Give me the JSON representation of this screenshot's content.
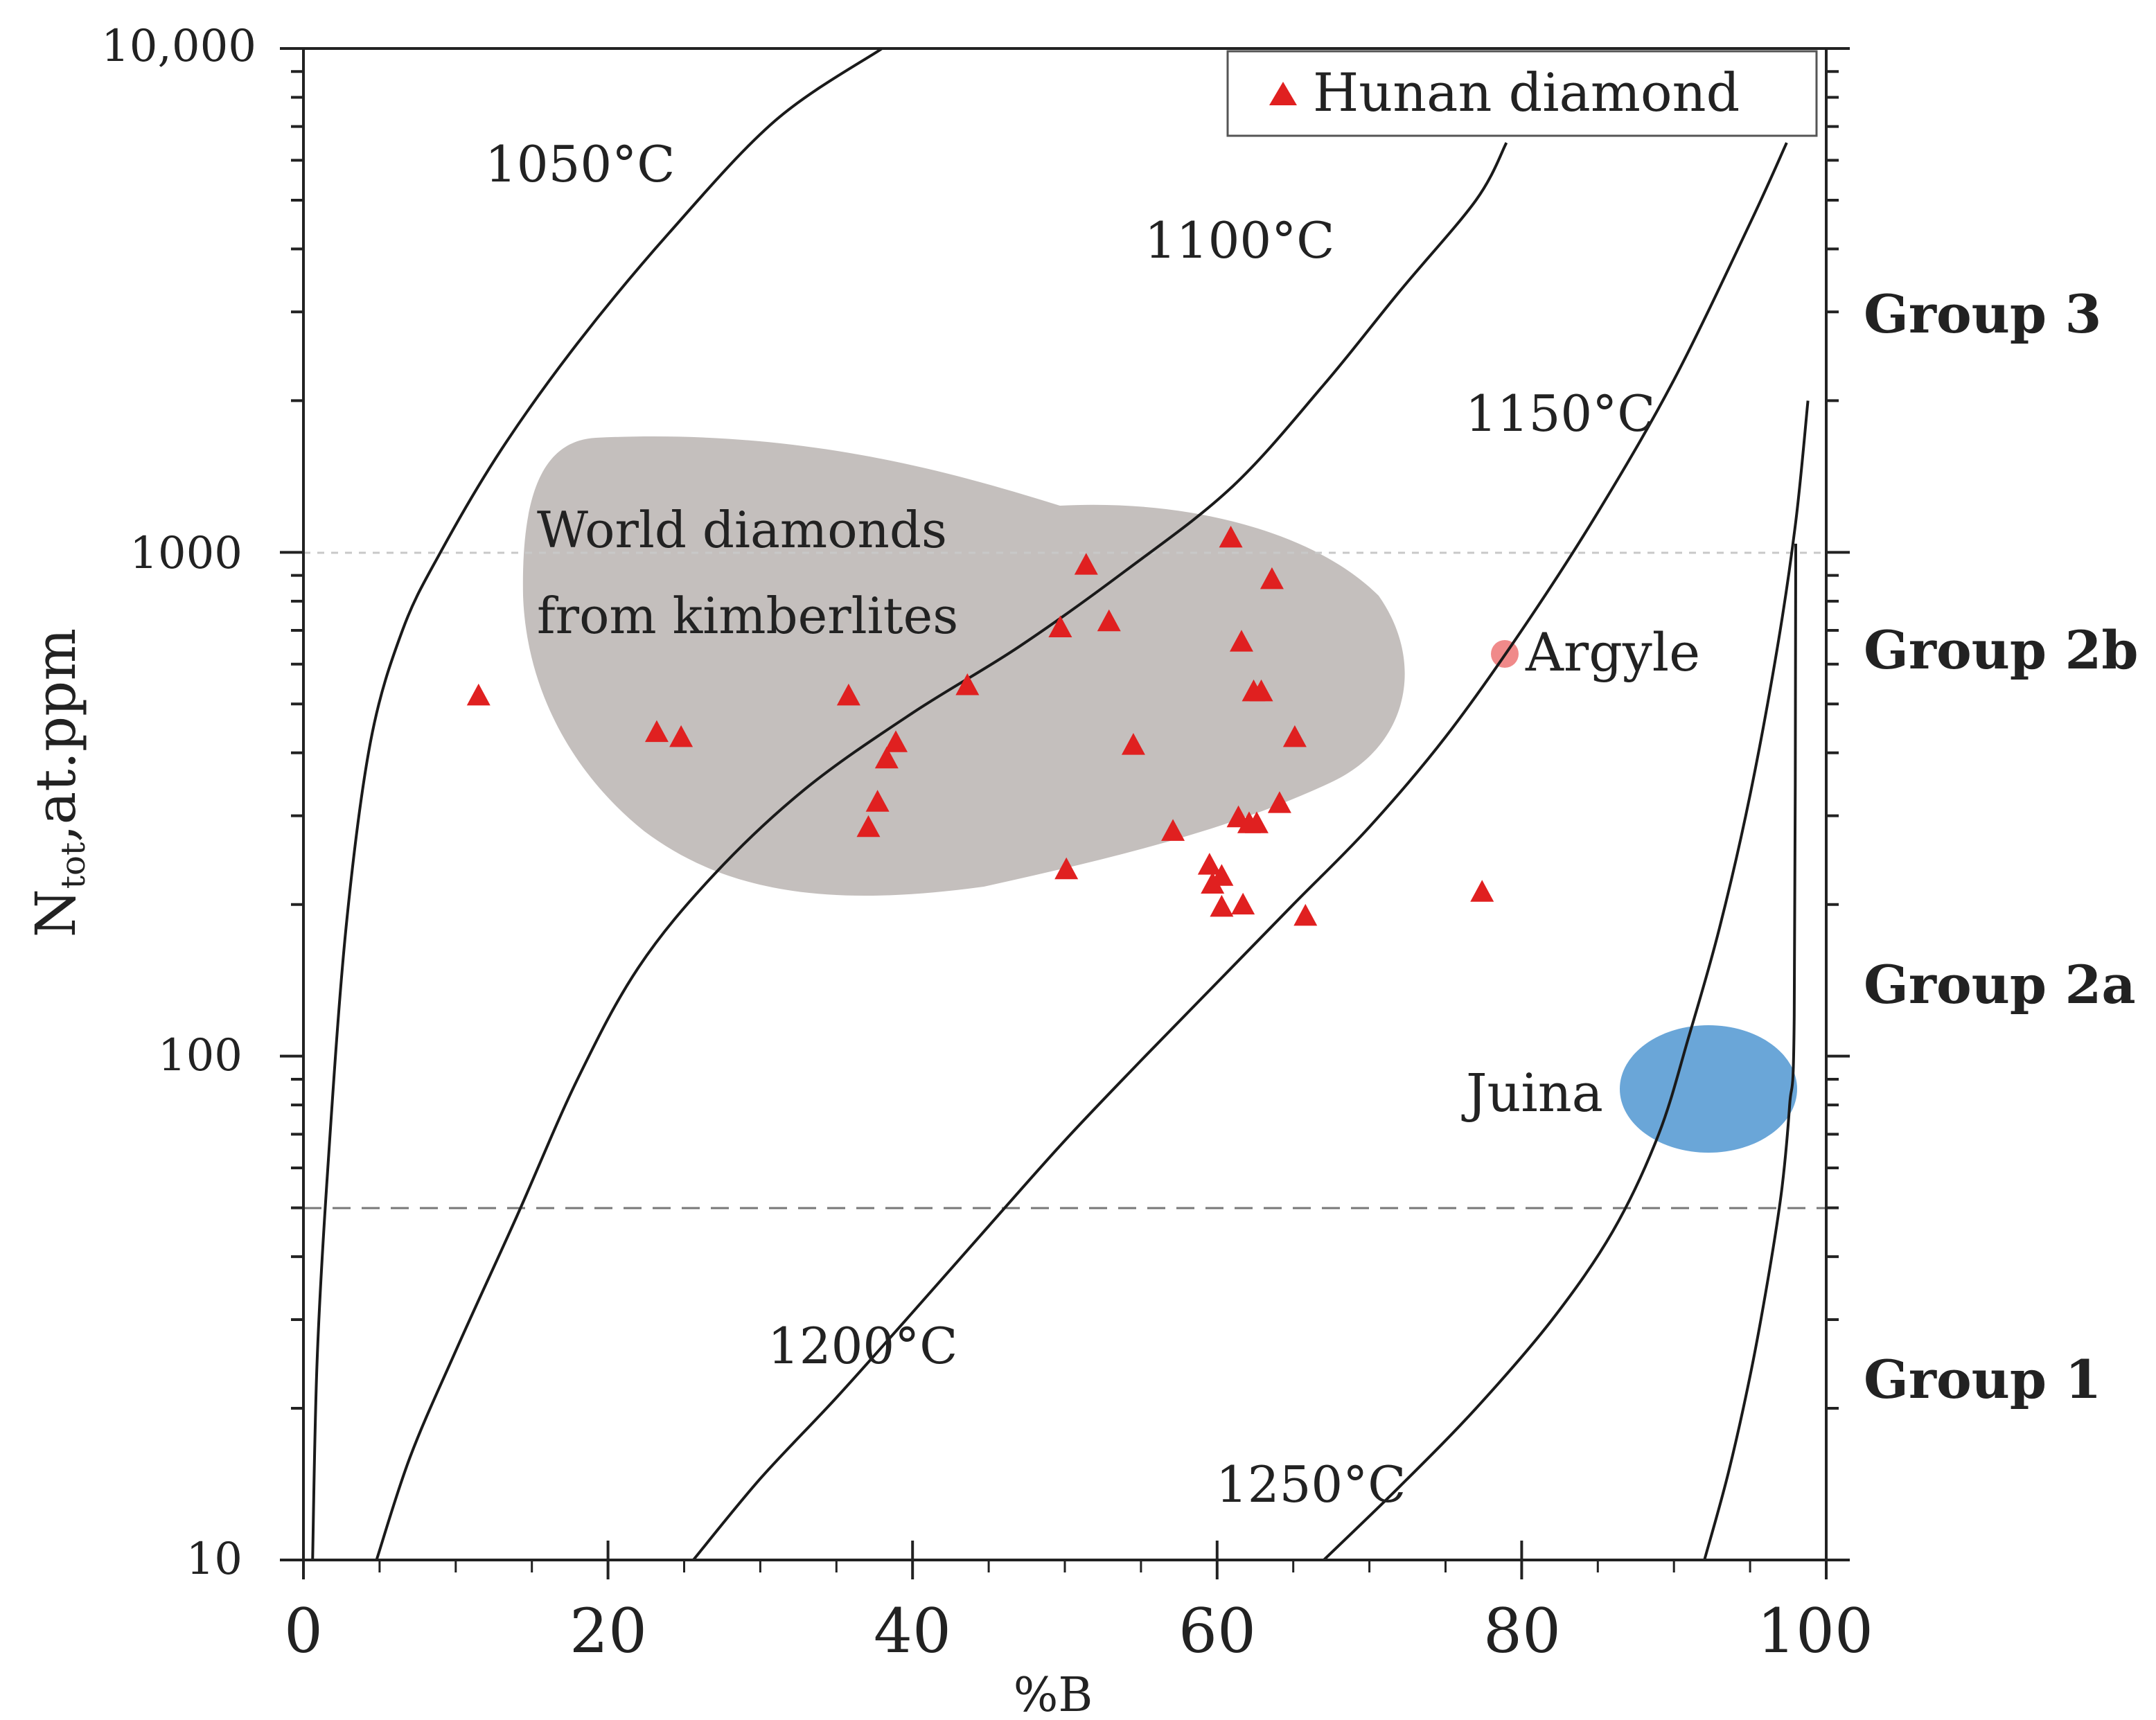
{
  "chart_data": {
    "type": "scatter",
    "xlabel": "%B",
    "ylabel": "N",
    "ylabel_subscript": "tot",
    "ylabel_suffix": ",at.ppm",
    "xlim": [
      0,
      100
    ],
    "ylim": [
      10,
      10000
    ],
    "yscale": "log",
    "x_ticks": [
      0,
      20,
      40,
      60,
      80,
      100
    ],
    "x_tick_labels": [
      "0",
      "20",
      "40",
      "60",
      "80",
      "100"
    ],
    "y_ticks": [
      10,
      100,
      1000,
      10000
    ],
    "y_tick_labels": [
      "10",
      "100",
      "1000",
      "10,000"
    ],
    "grid": false,
    "reference_lines": [
      {
        "axis": "y",
        "value": 1000,
        "style": "dotted"
      },
      {
        "axis": "y",
        "value": 50,
        "style": "dashed"
      }
    ],
    "legend": {
      "position": "top-right",
      "entries": [
        {
          "label": "Hunan diamond",
          "marker": "triangle",
          "color": "#e02020"
        }
      ]
    },
    "series": [
      {
        "name": "Hunan diamond",
        "marker": "triangle",
        "color": "#e02020",
        "points": [
          {
            "x": 11.5,
            "y": 520
          },
          {
            "x": 23.2,
            "y": 440
          },
          {
            "x": 24.8,
            "y": 430
          },
          {
            "x": 35.8,
            "y": 520
          },
          {
            "x": 38.3,
            "y": 390
          },
          {
            "x": 38.9,
            "y": 420
          },
          {
            "x": 37.7,
            "y": 320
          },
          {
            "x": 37.1,
            "y": 285
          },
          {
            "x": 43.6,
            "y": 545
          },
          {
            "x": 49.7,
            "y": 710
          },
          {
            "x": 51.4,
            "y": 945
          },
          {
            "x": 52.9,
            "y": 730
          },
          {
            "x": 50.1,
            "y": 235
          },
          {
            "x": 54.5,
            "y": 415
          },
          {
            "x": 57.1,
            "y": 280
          },
          {
            "x": 59.5,
            "y": 240
          },
          {
            "x": 59.7,
            "y": 220
          },
          {
            "x": 60.3,
            "y": 228
          },
          {
            "x": 60.3,
            "y": 198
          },
          {
            "x": 61.7,
            "y": 200
          },
          {
            "x": 60.9,
            "y": 1070
          },
          {
            "x": 61.6,
            "y": 665
          },
          {
            "x": 62.4,
            "y": 530
          },
          {
            "x": 62.9,
            "y": 530
          },
          {
            "x": 63.6,
            "y": 885
          },
          {
            "x": 61.4,
            "y": 298
          },
          {
            "x": 62.1,
            "y": 290
          },
          {
            "x": 62.6,
            "y": 290
          },
          {
            "x": 64.1,
            "y": 318
          },
          {
            "x": 65.1,
            "y": 430
          },
          {
            "x": 65.8,
            "y": 190
          },
          {
            "x": 77.4,
            "y": 212
          }
        ]
      }
    ],
    "isotherms": [
      {
        "label": "1050°C",
        "points": [
          [
            0.6,
            10
          ],
          [
            0.9,
            25
          ],
          [
            1.6,
            60
          ],
          [
            2.8,
            180
          ],
          [
            4.4,
            420
          ],
          [
            6.5,
            700
          ],
          [
            9,
            1000
          ],
          [
            13,
            1600
          ],
          [
            18,
            2600
          ],
          [
            24,
            4300
          ],
          [
            31,
            7200
          ],
          [
            38,
            10000
          ]
        ]
      },
      {
        "label": "1100°C",
        "points": [
          [
            4.8,
            10
          ],
          [
            7,
            16
          ],
          [
            10,
            26
          ],
          [
            14,
            48
          ],
          [
            18,
            90
          ],
          [
            22,
            150
          ],
          [
            27,
            230
          ],
          [
            33,
            340
          ],
          [
            40,
            480
          ],
          [
            47,
            650
          ],
          [
            54,
            920
          ],
          [
            61,
            1350
          ],
          [
            67,
            2150
          ],
          [
            72,
            3300
          ],
          [
            77,
            5000
          ],
          [
            79,
            6500
          ]
        ]
      },
      {
        "label": "1150°C",
        "points": [
          [
            25.6,
            10
          ],
          [
            30,
            14.5
          ],
          [
            35,
            21
          ],
          [
            40,
            31
          ],
          [
            45,
            46
          ],
          [
            50,
            68
          ],
          [
            55,
            98
          ],
          [
            60,
            140
          ],
          [
            65,
            200
          ],
          [
            70,
            285
          ],
          [
            75,
            430
          ],
          [
            80,
            700
          ],
          [
            85,
            1200
          ],
          [
            90,
            2200
          ],
          [
            95,
            4500
          ],
          [
            97.4,
            6500
          ]
        ]
      },
      {
        "label": "1200°C",
        "points": [
          [
            67,
            10
          ],
          [
            72,
            14
          ],
          [
            77,
            20
          ],
          [
            82,
            30
          ],
          [
            86,
            45
          ],
          [
            89,
            70
          ],
          [
            91,
            110
          ],
          [
            93,
            180
          ],
          [
            95,
            330
          ],
          [
            96.8,
            650
          ],
          [
            98,
            1150
          ],
          [
            98.8,
            2000
          ]
        ]
      },
      {
        "label": "1250°C",
        "points": [
          [
            92,
            10
          ],
          [
            93.6,
            15
          ],
          [
            95.1,
            24
          ],
          [
            96.3,
            38
          ],
          [
            97.1,
            55
          ],
          [
            97.6,
            80
          ],
          [
            97.9,
            120
          ],
          [
            98,
            1040
          ]
        ]
      }
    ],
    "regions": [
      {
        "label": "World diamonds from kimberlites",
        "color": "#c4bfbd"
      },
      {
        "label": "Argyle",
        "x": 79.2,
        "y": 640,
        "color": "#f08a8a"
      },
      {
        "label": "Juina",
        "x": 93.2,
        "y": 88,
        "color": "#6aa6d8"
      }
    ],
    "group_labels": [
      {
        "label": "Group 3",
        "y": 3100
      },
      {
        "label": "Group 2b",
        "y": 660
      },
      {
        "label": "Group 2a",
        "y": 143
      },
      {
        "label": "Group 1",
        "y": 17
      }
    ]
  }
}
